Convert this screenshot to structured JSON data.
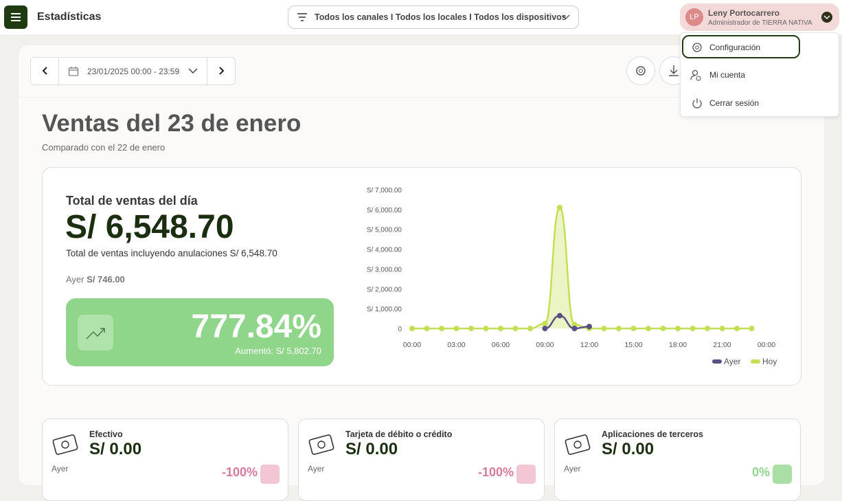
{
  "header": {
    "title": "Estadísticas",
    "filter": "Todos los canales I Todos los locales I Todos los dispositivos",
    "user": {
      "initials": "LP",
      "name": "Leny Portocarrero",
      "role": "Administrador de TIERRA NATIVA"
    }
  },
  "menu": {
    "items": [
      "Configuración",
      "Mi cuenta",
      "Cerrar sesión"
    ]
  },
  "toolbar": {
    "date": "23/01/2025 00:00 - 23:59"
  },
  "heading": "Ventas del 23 de enero",
  "subheading": "Comparado con el 22 de enero",
  "summary": {
    "label": "Total de ventas del día",
    "total": "S/ 6,548.70",
    "note": "Total de ventas incluyendo anulaciones S/ 6,548.70",
    "yesterday_label": "Ayer",
    "yesterday_value": "S/ 746.00",
    "change": "777.84%",
    "increase": "Aumentó: S/ 5,802.70"
  },
  "chart_data": {
    "type": "line",
    "x": [
      0,
      1,
      2,
      3,
      4,
      5,
      6,
      7,
      8,
      9,
      10,
      11,
      12,
      13,
      14,
      15,
      16,
      17,
      18,
      19,
      20,
      21,
      22,
      23
    ],
    "xlim": [
      0,
      24
    ],
    "xticks": [
      {
        "value": 0,
        "label": "00:00"
      },
      {
        "value": 3,
        "label": "03:00"
      },
      {
        "value": 6,
        "label": "06:00"
      },
      {
        "value": 9,
        "label": "09:00"
      },
      {
        "value": 12,
        "label": "12:00"
      },
      {
        "value": 15,
        "label": "15:00"
      },
      {
        "value": 18,
        "label": "18:00"
      },
      {
        "value": 21,
        "label": "21:00"
      },
      {
        "value": 24,
        "label": "00:00"
      }
    ],
    "ylim": [
      0,
      7000
    ],
    "yticks": [
      0,
      {
        "value": 1000,
        "label": "S/ 1,000.00"
      },
      {
        "value": 2000,
        "label": "S/ 2,000.00"
      },
      {
        "value": 3000,
        "label": "S/ 3,000.00"
      },
      {
        "value": 4000,
        "label": "S/ 4,000.00"
      },
      {
        "value": 5000,
        "label": "S/ 5,000.00"
      },
      {
        "value": 6000,
        "label": "S/ 6,000.00"
      },
      {
        "value": 7000,
        "label": "S/ 7,000.00"
      }
    ],
    "legend": "bottom-right",
    "series": [
      {
        "name": "Ayer",
        "color": "#5a4e85",
        "values": [
          null,
          null,
          null,
          null,
          null,
          null,
          null,
          null,
          null,
          0,
          646,
          0,
          100,
          null,
          null,
          null,
          null,
          null,
          null,
          null,
          null,
          null,
          null,
          null
        ]
      },
      {
        "name": "Hoy",
        "color": "#c3df55",
        "values": [
          0,
          0,
          0,
          0,
          0,
          0,
          0,
          0,
          0,
          250,
          6100,
          200,
          0,
          0,
          0,
          0,
          0,
          0,
          0,
          0,
          0,
          0,
          0,
          0
        ]
      }
    ]
  },
  "cards": [
    {
      "title": "Efectivo",
      "value": "S/ 0.00",
      "yesterday": "Ayer",
      "change": "-100%"
    },
    {
      "title": "Tarjeta de débito o crédito",
      "value": "S/ 0.00",
      "yesterday": "Ayer",
      "change": "-100%"
    },
    {
      "title": "Aplicaciones de terceros",
      "value": "S/ 0.00",
      "yesterday": "Ayer",
      "change": "0%"
    }
  ]
}
